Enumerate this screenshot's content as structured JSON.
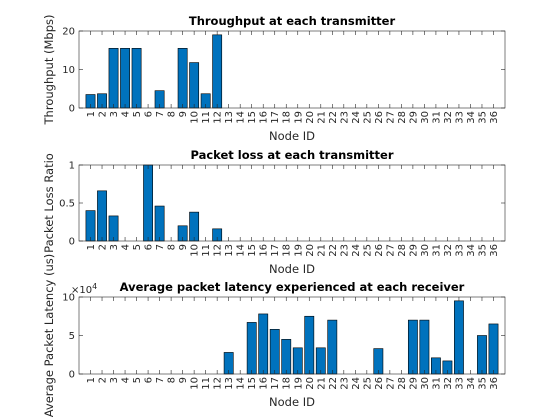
{
  "chart_data": [
    {
      "type": "bar",
      "title": "Throughput at each transmitter",
      "xlabel": "Node ID",
      "ylabel": "Throughput (Mbps)",
      "ylim": [
        0,
        20
      ],
      "yticks": [
        0,
        10,
        20
      ],
      "ytick_labels": [
        "0",
        "10",
        "20"
      ],
      "exponent_label": "",
      "categories": [
        "1",
        "2",
        "3",
        "4",
        "5",
        "6",
        "7",
        "8",
        "9",
        "10",
        "11",
        "12",
        "13",
        "14",
        "15",
        "16",
        "17",
        "18",
        "19",
        "20",
        "21",
        "22",
        "23",
        "24",
        "25",
        "26",
        "27",
        "28",
        "29",
        "30",
        "31",
        "32",
        "33",
        "34",
        "35",
        "36"
      ],
      "values": [
        3.5,
        3.7,
        15.5,
        15.5,
        15.5,
        0,
        4.5,
        0,
        15.5,
        11.8,
        3.7,
        19,
        0,
        0,
        0,
        0,
        0,
        0,
        0,
        0,
        0,
        0,
        0,
        0,
        0,
        0,
        0,
        0,
        0,
        0,
        0,
        0,
        0,
        0,
        0,
        0
      ],
      "bar_color": "#0072BD",
      "grid": false
    },
    {
      "type": "bar",
      "title": "Packet loss at each transmitter",
      "xlabel": "Node ID",
      "ylabel": "Packet Loss Ratio",
      "ylim": [
        0,
        1
      ],
      "yticks": [
        0,
        0.5,
        1
      ],
      "ytick_labels": [
        "0",
        "0.5",
        "1"
      ],
      "exponent_label": "",
      "categories": [
        "1",
        "2",
        "3",
        "4",
        "5",
        "6",
        "7",
        "8",
        "9",
        "10",
        "11",
        "12",
        "13",
        "14",
        "15",
        "16",
        "17",
        "18",
        "19",
        "20",
        "21",
        "22",
        "23",
        "24",
        "25",
        "26",
        "27",
        "28",
        "29",
        "30",
        "31",
        "32",
        "33",
        "34",
        "35",
        "36"
      ],
      "values": [
        0.4,
        0.66,
        0.33,
        0,
        0,
        1.0,
        0.46,
        0,
        0.2,
        0.38,
        0,
        0.16,
        0,
        0,
        0,
        0,
        0,
        0,
        0,
        0,
        0,
        0,
        0,
        0,
        0,
        0,
        0,
        0,
        0,
        0,
        0,
        0,
        0,
        0,
        0,
        0
      ],
      "bar_color": "#0072BD",
      "grid": false
    },
    {
      "type": "bar",
      "title": "Average packet latency experienced at each receiver",
      "xlabel": "Node ID",
      "ylabel": "Average Packet Latency (us)",
      "ylim": [
        0,
        100000
      ],
      "yticks": [
        0,
        50000,
        100000
      ],
      "ytick_labels": [
        "0",
        "5",
        "10"
      ],
      "exponent_label": "×10",
      "exponent_power": "4",
      "categories": [
        "1",
        "2",
        "3",
        "4",
        "5",
        "6",
        "7",
        "8",
        "9",
        "10",
        "11",
        "12",
        "13",
        "14",
        "15",
        "16",
        "17",
        "18",
        "19",
        "20",
        "21",
        "22",
        "23",
        "24",
        "25",
        "26",
        "27",
        "28",
        "29",
        "30",
        "31",
        "32",
        "33",
        "34",
        "35",
        "36"
      ],
      "values": [
        0,
        0,
        0,
        0,
        0,
        0,
        0,
        0,
        0,
        0,
        0,
        0,
        28000,
        0,
        67000,
        78000,
        58000,
        45000,
        34000,
        75000,
        34000,
        70000,
        0,
        0,
        0,
        33000,
        0,
        0,
        70000,
        70000,
        21000,
        17000,
        95000,
        0,
        50000,
        65000
      ],
      "bar_color": "#0072BD",
      "grid": false
    }
  ]
}
